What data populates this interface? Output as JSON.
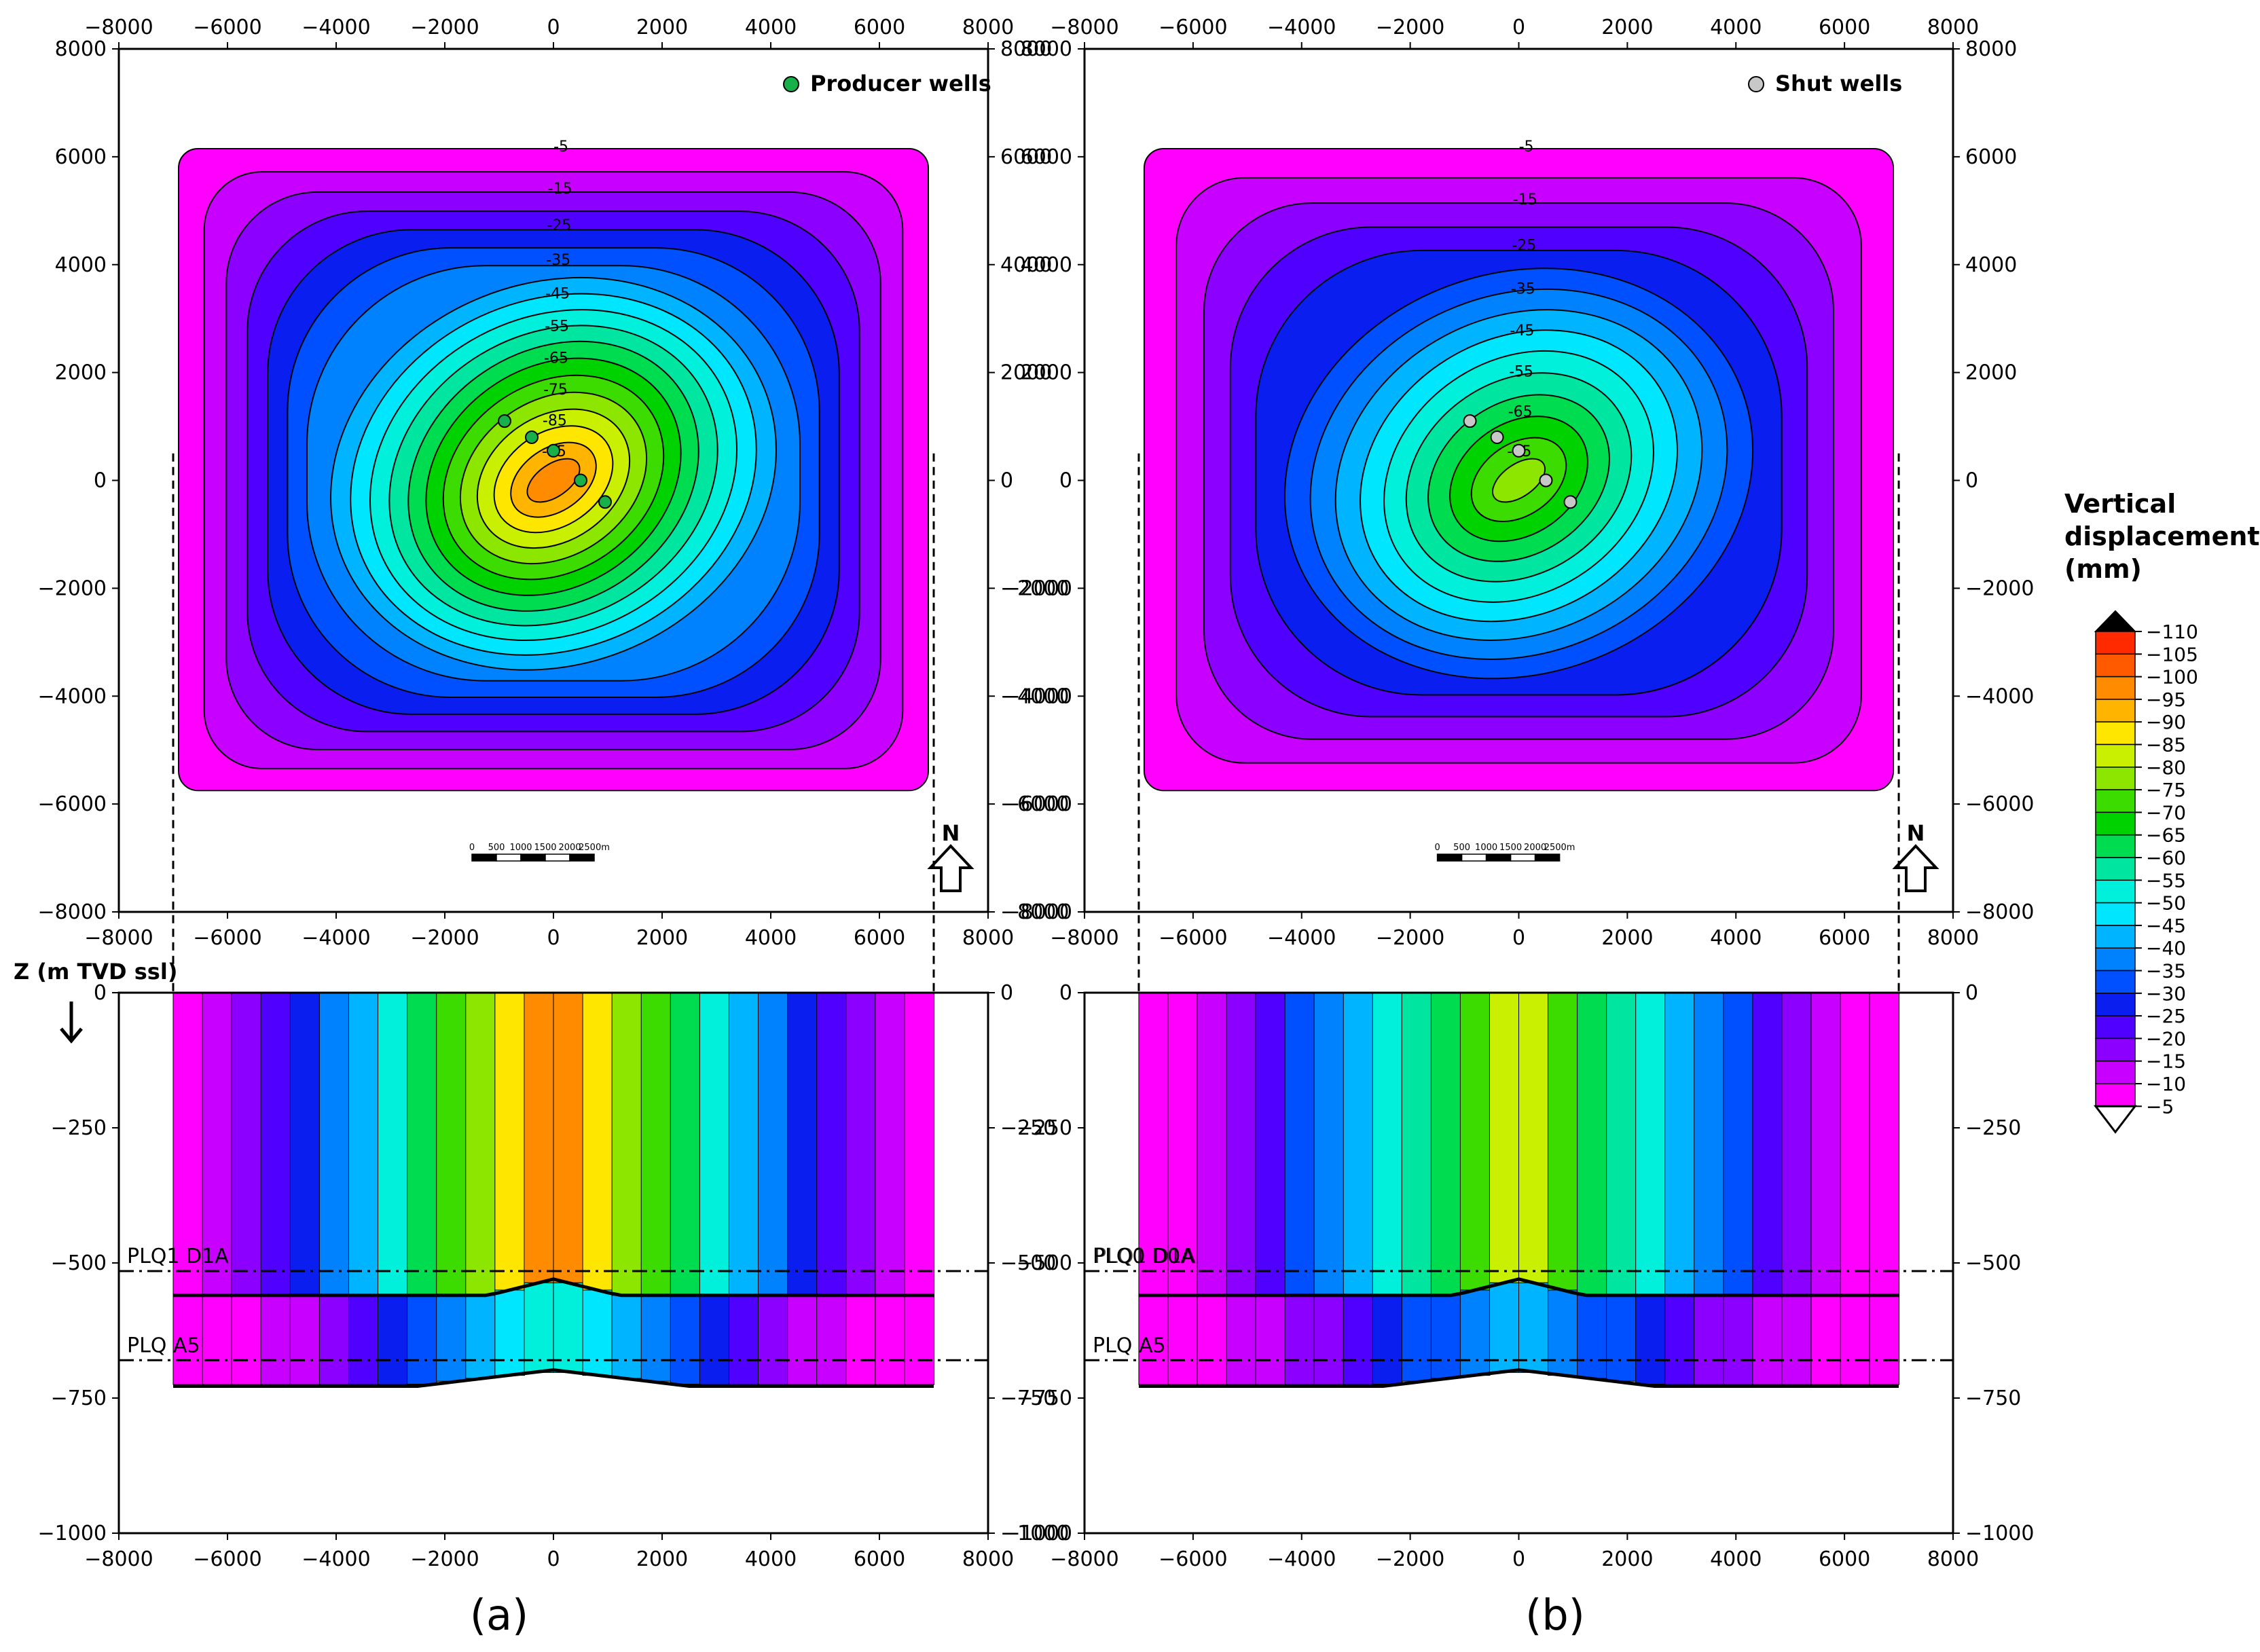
{
  "chart_data": [
    {
      "id": "a",
      "type": "heatmap",
      "panel_label": "(a)",
      "map": {
        "x_ticks": [
          "−8000",
          "−6000",
          "−4000",
          "−2000",
          "0",
          "2000",
          "4000",
          "6000",
          "8000"
        ],
        "y_ticks": [
          "8000",
          "6000",
          "4000",
          "2000",
          "0",
          "−2000",
          "−4000",
          "−6000",
          "−8000"
        ],
        "xlim": [
          -8000,
          8000
        ],
        "ylim": [
          -8000,
          8000
        ],
        "legend": "Producer wells",
        "well_color": "#18b04a",
        "max_subsidence_mm": -95,
        "wells": [
          [
            -900,
            1100
          ],
          [
            -400,
            800
          ],
          [
            0,
            550
          ],
          [
            500,
            0
          ],
          [
            950,
            -400
          ]
        ]
      },
      "section": {
        "z_label": "Z (m TVD ssl)",
        "y_ticks": [
          "0",
          "−250",
          "−500",
          "−750",
          "−1000"
        ],
        "x_ticks": [
          "−8000",
          "−6000",
          "−4000",
          "−2000",
          "0",
          "2000",
          "4000",
          "6000",
          "8000"
        ],
        "zlim": [
          -1000,
          0
        ],
        "horizon_1": "PLQ1 D1A",
        "horizon_2": "PLQ A5",
        "center_max_mm": -105
      }
    },
    {
      "id": "b",
      "type": "heatmap",
      "panel_label": "(b)",
      "map": {
        "x_ticks": [
          "−8000",
          "−6000",
          "−4000",
          "−2000",
          "0",
          "2000",
          "4000",
          "6000",
          "8000"
        ],
        "y_ticks": [
          "8000",
          "6000",
          "4000",
          "2000",
          "0",
          "−2000",
          "−4000",
          "−6000",
          "−8000"
        ],
        "xlim": [
          -8000,
          8000
        ],
        "ylim": [
          -8000,
          8000
        ],
        "legend": "Shut wells",
        "well_color": "#c8c8c8",
        "max_subsidence_mm": -75,
        "wells": [
          [
            -900,
            1100
          ],
          [
            -400,
            800
          ],
          [
            0,
            550
          ],
          [
            500,
            0
          ],
          [
            950,
            -400
          ]
        ]
      },
      "section": {
        "z_label": "",
        "y_ticks": [
          "0",
          "−250",
          "−500",
          "−750",
          "−1000"
        ],
        "x_ticks": [
          "−8000",
          "−6000",
          "−4000",
          "−2000",
          "0",
          "2000",
          "4000",
          "6000",
          "8000"
        ],
        "zlim": [
          -1000,
          0
        ],
        "horizon_1": "PLQ0 D0A",
        "horizon_1_overlay": "PLQ1 D1A",
        "horizon_2": "PLQ A5",
        "center_max_mm": -85
      }
    }
  ],
  "colorbar": {
    "title_lines": [
      "Vertical",
      "displacements",
      "(mm)"
    ],
    "labels": [
      "−110",
      "−105",
      "−100",
      "−95",
      "−90",
      "−85",
      "−80",
      "−75",
      "−70",
      "−65",
      "−60",
      "−55",
      "−50",
      "−45",
      "−40",
      "−35",
      "−30",
      "−25",
      "−20",
      "−15",
      "−10",
      "−5"
    ],
    "colors": [
      "#000000",
      "#ff2a00",
      "#ff5a00",
      "#ff8c00",
      "#ffb400",
      "#ffe600",
      "#c8f000",
      "#8ce600",
      "#3cdc00",
      "#00d200",
      "#00dc50",
      "#00e6a0",
      "#00f0dc",
      "#00e6ff",
      "#00b4ff",
      "#0082ff",
      "#0050ff",
      "#0a1ef0",
      "#5000ff",
      "#8c00ff",
      "#c800ff",
      "#ff00ff"
    ]
  },
  "scale_bar": {
    "labels": [
      "0",
      "500",
      "1000",
      "1500",
      "2000",
      "2500m"
    ]
  },
  "north": "N"
}
